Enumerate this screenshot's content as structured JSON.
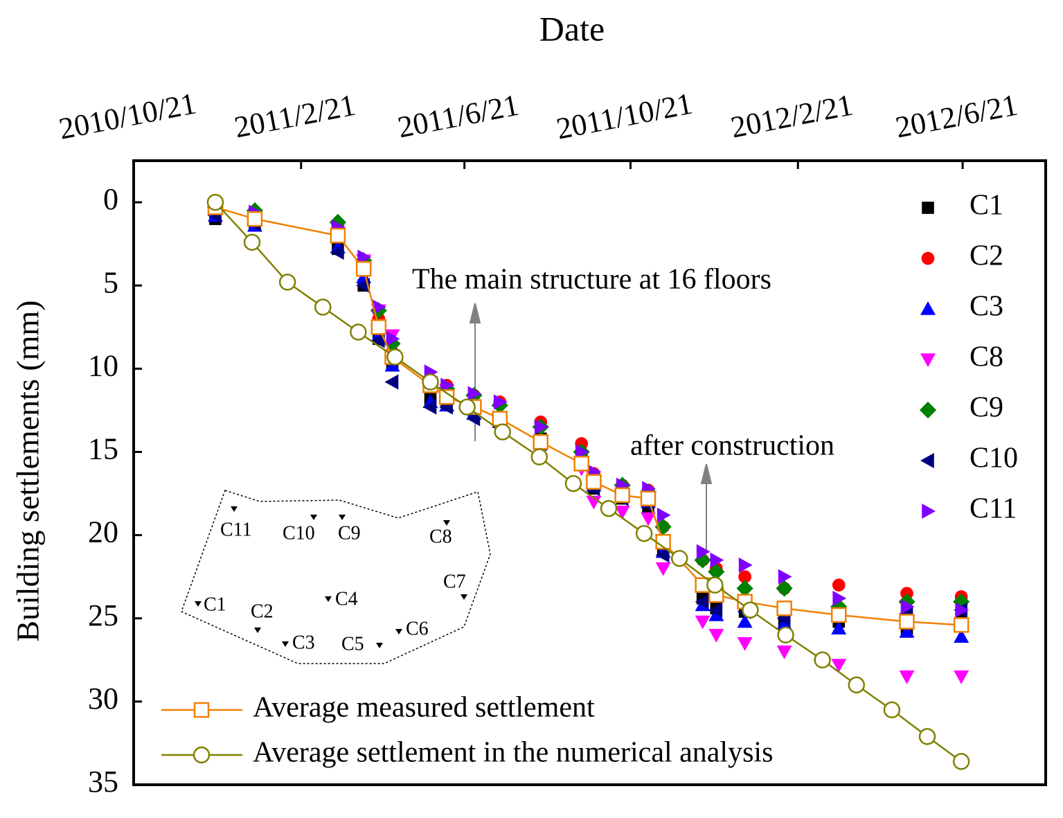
{
  "chart_data": {
    "type": "line",
    "title": "Date",
    "y_label": "Building settlements (mm)",
    "xlim": [
      "2010/10/21",
      "2012/8/21"
    ],
    "xticks": [
      "2010/10/21",
      "2011/2/21",
      "2011/6/21",
      "2011/10/21",
      "2012/2/21",
      "2012/6/21"
    ],
    "ylim": [
      -2.5,
      35
    ],
    "y_inverted": true,
    "yticks": [
      0,
      5,
      10,
      15,
      20,
      25,
      30,
      35
    ],
    "x": [
      "2010/12/20",
      "2011/1/18",
      "2011/3/20",
      "2011/4/8",
      "2011/4/19",
      "2011/4/29",
      "2011/5/27",
      "2011/6/8",
      "2011/6/28",
      "2011/7/17",
      "2011/8/16",
      "2011/9/15",
      "2011/9/24",
      "2011/10/15",
      "2011/11/3",
      "2011/11/14",
      "2011/12/13",
      "2011/12/23",
      "2012/1/13",
      "2012/2/11",
      "2012/3/22",
      "2012/5/11",
      "2012/6/20"
    ],
    "series": [
      {
        "name": "C1",
        "type": "scatter",
        "marker": "square",
        "color": "#000000",
        "values": [
          1.0,
          1.2,
          2.8,
          5.0,
          8.2,
          9.8,
          11.8,
          12.0,
          12.6,
          13.0,
          14.2,
          15.5,
          17.2,
          17.8,
          18.4,
          21.0,
          23.8,
          24.4,
          24.6,
          25.2,
          25.2,
          25.6,
          25.0
        ]
      },
      {
        "name": "C2",
        "type": "scatter",
        "marker": "circle",
        "color": "#ff0000",
        "values": [
          0.5,
          0.8,
          1.5,
          3.8,
          7.0,
          9.0,
          10.8,
          11.0,
          11.6,
          12.0,
          13.2,
          14.5,
          16.3,
          17.0,
          17.3,
          19.5,
          21.5,
          22.0,
          22.5,
          23.2,
          23.0,
          23.5,
          23.7
        ]
      },
      {
        "name": "C3",
        "type": "scatter",
        "marker": "triangle-up",
        "color": "#0000ff",
        "values": [
          0.8,
          1.4,
          2.7,
          4.5,
          8.0,
          9.8,
          12.0,
          12.2,
          12.7,
          13.2,
          14.5,
          15.7,
          17.0,
          17.5,
          18.0,
          21.0,
          24.2,
          24.8,
          25.2,
          25.3,
          25.6,
          25.8,
          26.1
        ]
      },
      {
        "name": "C8",
        "type": "scatter",
        "marker": "triangle-down",
        "color": "#ff00ff",
        "values": [
          0.5,
          0.8,
          1.6,
          3.5,
          6.5,
          8.0,
          10.8,
          11.3,
          12.4,
          13.5,
          14.5,
          16.0,
          18.0,
          18.6,
          19.0,
          22.0,
          25.2,
          26.0,
          26.5,
          27.0,
          27.8,
          28.5,
          28.5
        ]
      },
      {
        "name": "C9",
        "type": "scatter",
        "marker": "diamond",
        "color": "#008000",
        "values": [
          0.3,
          0.5,
          1.2,
          3.5,
          6.5,
          8.5,
          10.8,
          11.2,
          11.6,
          12.2,
          13.5,
          15.0,
          16.5,
          17.0,
          17.4,
          19.5,
          21.5,
          22.2,
          23.2,
          23.2,
          24.3,
          24.0,
          24.0
        ]
      },
      {
        "name": "C10",
        "type": "scatter",
        "marker": "triangle-left",
        "color": "#000080",
        "values": [
          0.8,
          1.3,
          3.0,
          5.0,
          8.3,
          10.8,
          12.3,
          12.3,
          13.0,
          13.5,
          14.5,
          15.7,
          17.2,
          17.8,
          18.2,
          21.2,
          24.0,
          24.5,
          24.6,
          25.0,
          24.8,
          24.7,
          24.5
        ]
      },
      {
        "name": "C11",
        "type": "scatter",
        "marker": "triangle-right",
        "color": "#8000ff",
        "values": [
          0.4,
          0.6,
          1.5,
          3.3,
          6.3,
          8.2,
          10.2,
          11.0,
          11.5,
          12.0,
          13.5,
          15.0,
          16.2,
          17.0,
          17.2,
          18.8,
          21.0,
          21.5,
          21.8,
          22.5,
          23.8,
          24.3,
          24.5
        ]
      },
      {
        "name": "Average measured settlement",
        "type": "line",
        "marker": "open-square",
        "color": "#f08000",
        "values": [
          0.3,
          1.0,
          2.0,
          4.0,
          7.5,
          9.3,
          11.0,
          11.7,
          12.3,
          13.0,
          14.4,
          15.7,
          16.8,
          17.6,
          17.8,
          20.4,
          23.0,
          23.6,
          24.0,
          24.4,
          24.8,
          25.2,
          25.4
        ]
      },
      {
        "name": "Average settlement in the numerical analysis",
        "type": "line",
        "marker": "open-circle",
        "color": "#808000",
        "x": [
          "2010/12/20",
          "2011/1/16",
          "2011/2/11",
          "2011/3/9",
          "2011/4/4",
          "2011/5/1",
          "2011/5/27",
          "2011/6/23",
          "2011/7/19",
          "2011/8/15",
          "2011/9/9",
          "2011/10/5",
          "2011/10/31",
          "2011/11/26",
          "2011/12/22",
          "2012/1/17",
          "2012/2/12",
          "2012/3/10",
          "2012/4/4",
          "2012/4/30",
          "2012/5/26",
          "2012/6/20"
        ],
        "values": [
          0,
          2.4,
          4.8,
          6.3,
          7.8,
          9.3,
          10.8,
          12.3,
          13.8,
          15.3,
          16.9,
          18.4,
          19.9,
          21.4,
          23.0,
          24.5,
          26.0,
          27.5,
          29.0,
          30.5,
          32.1,
          33.6
        ]
      }
    ],
    "annotations": [
      "The main structure at 16 floors",
      "after construction"
    ]
  },
  "inset": {
    "labels": [
      "C11",
      "C10",
      "C9",
      "C8",
      "C7",
      "C1",
      "C2",
      "C4",
      "C6",
      "C3",
      "C5"
    ]
  }
}
